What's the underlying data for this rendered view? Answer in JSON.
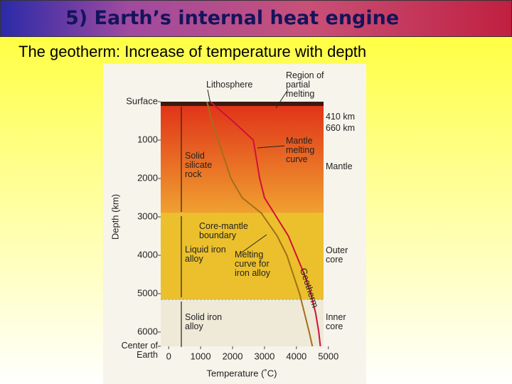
{
  "slide": {
    "title": "5) Earth’s internal heat engine",
    "subtitle": "The geotherm: Increase of temperature with depth"
  },
  "chart_data": {
    "type": "line",
    "x_label": "Temperature (˚C)",
    "y_label": "Depth (km)",
    "xlim": [
      -250,
      4850
    ],
    "ylim": [
      0,
      6371
    ],
    "xticks": [
      0,
      1000,
      2000,
      3000,
      4000,
      5000
    ],
    "yticks": [
      {
        "value": 0,
        "label": "Surface"
      },
      1000,
      2000,
      3000,
      4000,
      5000,
      6000,
      {
        "value": 6371,
        "label": "Center of Earth"
      }
    ],
    "y": [
      0,
      500,
      1000,
      1500,
      2000,
      2500,
      2900,
      3500,
      4000,
      4500,
      5000,
      5500,
      6000,
      6371
    ],
    "series": [
      {
        "name": "Geotherm",
        "color": "#a0701c",
        "values": [
          1200,
          1350,
          1550,
          1750,
          1950,
          2300,
          2900,
          3400,
          3700,
          3900,
          4100,
          4250,
          4400,
          4500
        ]
      },
      {
        "name": "Mantle melting curve",
        "color": "#d0103a",
        "values": [
          1300,
          2000,
          2650,
          2750,
          2850,
          3000,
          3300,
          null,
          null,
          null,
          null,
          null,
          null,
          null
        ]
      },
      {
        "name": "Melting curve for iron alloy",
        "color": "#d0103a",
        "values": [
          null,
          null,
          null,
          null,
          null,
          null,
          3300,
          3750,
          4000,
          4250,
          4450,
          4600,
          4700,
          4750
        ]
      }
    ],
    "regions": [
      {
        "label": "Mantle",
        "ylim": [
          0,
          2900
        ],
        "color": "#e8601c"
      },
      {
        "label": "Outer core",
        "ylim": [
          2900,
          5150
        ],
        "color": "#ecc02c"
      },
      {
        "label": "Inner core",
        "ylim": [
          5150,
          6371
        ],
        "color": "#efe9d8"
      }
    ],
    "annotations": [
      "Lithosphere",
      "Region of partial melting",
      "410 km",
      "660 km",
      "Solid silicate rock",
      "Core-mantle boundary",
      "Liquid iron alloy",
      "Solid iron alloy"
    ]
  }
}
